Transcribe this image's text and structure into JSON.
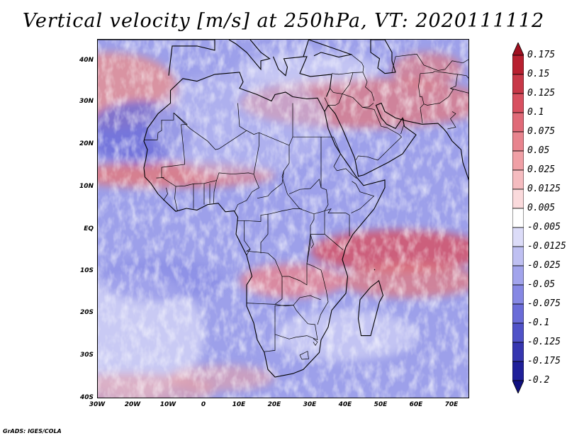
{
  "title": "Vertical velocity [m/s] at 250hPa, VT: 2020111112",
  "map": {
    "lat_labels": [
      "40N",
      "30N",
      "20N",
      "10N",
      "EQ",
      "10S",
      "20S",
      "30S",
      "40S"
    ],
    "lon_labels": [
      "30W",
      "20W",
      "10W",
      "0",
      "10E",
      "20E",
      "30E",
      "40E",
      "50E",
      "60E",
      "70E"
    ]
  },
  "colorbar": {
    "levels": [
      "0.175",
      "0.15",
      "0.125",
      "0.1",
      "0.075",
      "0.05",
      "0.025",
      "0.0125",
      "0.005",
      "-0.005",
      "-0.0125",
      "-0.025",
      "-0.05",
      "-0.075",
      "-0.1",
      "-0.125",
      "-0.175",
      "-0.2"
    ],
    "colors": [
      "#a01020",
      "#b82030",
      "#c83848",
      "#d85060",
      "#e06a78",
      "#e8848e",
      "#f0a0a6",
      "#f5bcc0",
      "#fadadc",
      "#ffffff",
      "#dcdcf8",
      "#bfc0f2",
      "#a2a4ec",
      "#8688e4",
      "#6a6cd8",
      "#5052c8",
      "#3636b0",
      "#20209a",
      "#101080"
    ]
  },
  "credit": "GrADS: IGES/COLA"
}
